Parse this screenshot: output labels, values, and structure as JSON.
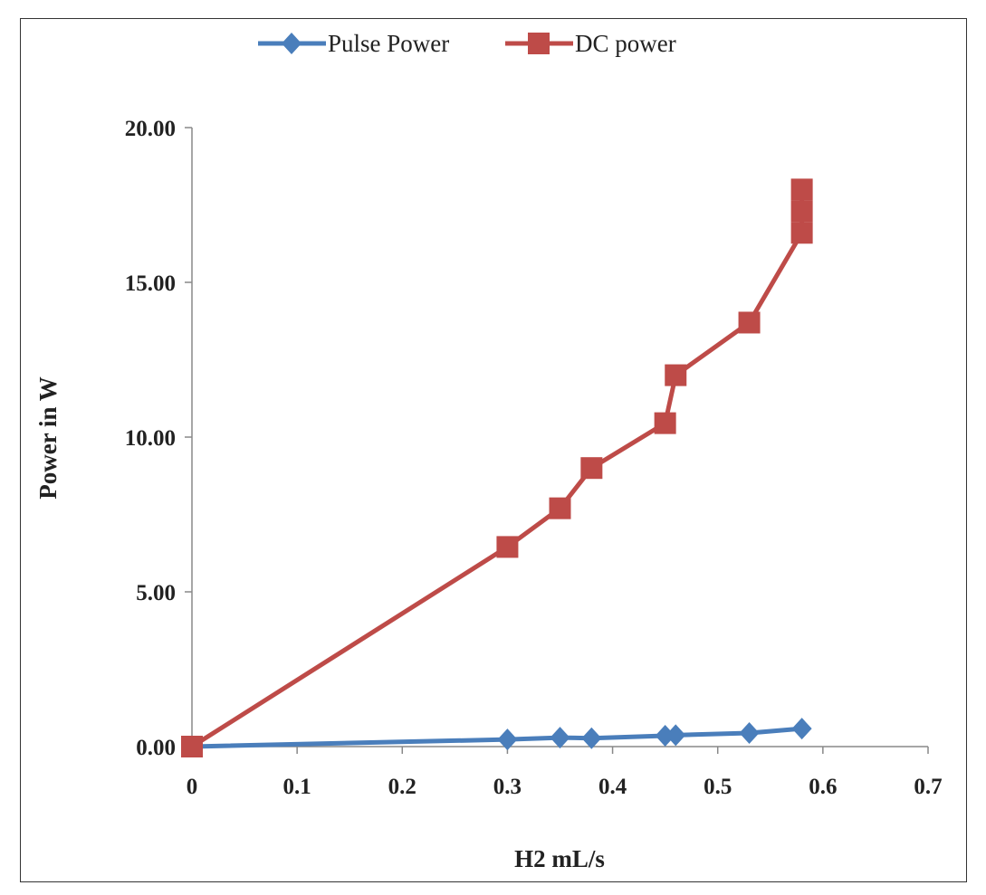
{
  "chart_data": {
    "type": "line",
    "title": "",
    "xlabel": "H2  mL/s",
    "ylabel": "Power in W",
    "xlim": [
      0,
      0.7
    ],
    "ylim": [
      0,
      20
    ],
    "x_ticks": [
      "0",
      "0.1",
      "0.2",
      "0.3",
      "0.4",
      "0.5",
      "0.6",
      "0.7"
    ],
    "y_ticks": [
      "0.00",
      "5.00",
      "10.00",
      "15.00",
      "20.00"
    ],
    "grid": false,
    "legend_position": "top",
    "series": [
      {
        "name": "Pulse Power",
        "color": "#4a7ebb",
        "marker": "diamond",
        "x": [
          0,
          0.3,
          0.35,
          0.38,
          0.45,
          0.46,
          0.53,
          0.58
        ],
        "y": [
          0,
          0.23,
          0.29,
          0.27,
          0.35,
          0.37,
          0.44,
          0.58
        ]
      },
      {
        "name": "DC power",
        "color": "#be4b48",
        "marker": "square",
        "x": [
          0,
          0.3,
          0.35,
          0.38,
          0.45,
          0.46,
          0.53,
          0.58,
          0.58,
          0.58
        ],
        "y": [
          0,
          6.45,
          7.7,
          9.0,
          10.45,
          12.0,
          13.7,
          16.6,
          17.3,
          18.0
        ]
      }
    ]
  }
}
